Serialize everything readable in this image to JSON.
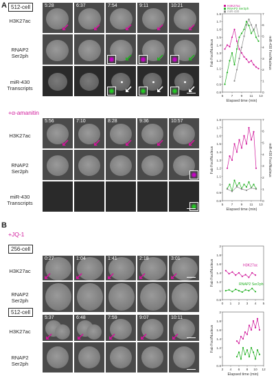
{
  "panelA": {
    "letter": "A",
    "stage": "512-cell",
    "treatment": "+α-amanitin",
    "rows_top": [
      "H3K27ac",
      "RNAP2 Ser2ph",
      "miR-430 Transcripts"
    ],
    "times_top": [
      "5:28",
      "6:37",
      "7:54",
      "9:11",
      "10:21"
    ],
    "times_bottom": [
      "5:56",
      "7:10",
      "8:28",
      "9:36",
      "10:57"
    ]
  },
  "panelB": {
    "letter": "B",
    "treatment": "+JQ-1",
    "stage1": "256-cell",
    "stage2": "512-cell",
    "rows": [
      "H3K27ac",
      "RNAP2 Ser2ph"
    ],
    "times1": [
      "0:27",
      "1:04",
      "1:41",
      "2:18",
      "3:01"
    ],
    "times2": [
      "5:37",
      "6:48",
      "7:59",
      "9:07",
      "10:11"
    ]
  },
  "colors": {
    "magenta": "#d0179a",
    "green": "#22b022",
    "gray": "#888888"
  },
  "chart_data": [
    {
      "type": "line",
      "legend": [
        "H3K27ac",
        "RNAP2 Ser2ph",
        "miR-430"
      ],
      "xlabel": "Elapsed time (min)",
      "ylabel": "Fab Foci/Nucleus",
      "y2label": "miR-430 Foci/Nucleus",
      "xlim": [
        5,
        13
      ],
      "ylim": [
        0.8,
        1.8
      ],
      "y2lim": [
        0,
        7
      ],
      "xticks": [
        "5",
        "7",
        "9",
        "11",
        "13"
      ],
      "yticks": [
        "0.8",
        "0.9",
        "1",
        "1.1",
        "1.2",
        "1.3",
        "1.4",
        "1.5",
        "1.6",
        "1.7",
        "1.8"
      ],
      "y2ticks": [
        "0",
        "1",
        "2",
        "3",
        "4",
        "5",
        "6",
        "7"
      ],
      "series": [
        {
          "name": "H3K27ac",
          "axis": "left",
          "x": [
            5.5,
            6,
            6.5,
            7,
            7.5,
            8,
            8.5,
            9,
            9.5,
            10,
            10.5,
            11,
            11.5,
            12,
            12.5
          ],
          "y": [
            1.35,
            1.4,
            1.38,
            1.5,
            1.6,
            1.45,
            1.35,
            1.3,
            1.25,
            1.22,
            1.18,
            1.2,
            1.15,
            1.12,
            1.1
          ]
        },
        {
          "name": "RNAP2 Ser2ph",
          "axis": "left",
          "x": [
            5.5,
            6,
            6.5,
            7,
            7.5,
            8,
            8.5,
            9,
            9.5,
            10,
            10.5,
            11,
            11.5,
            12,
            12.5
          ],
          "y": [
            0.9,
            1.05,
            1.2,
            1.3,
            1.15,
            1.35,
            1.5,
            1.55,
            1.6,
            1.7,
            1.65,
            1.55,
            1.6,
            1.5,
            1.45
          ]
        },
        {
          "name": "miR-430",
          "axis": "right",
          "x": [
            7.5,
            8,
            8.5,
            9,
            9.5,
            10,
            10.5,
            11,
            11.5,
            12,
            12.5
          ],
          "y": [
            1,
            2,
            3,
            4,
            5,
            6,
            6.5,
            6,
            5.5,
            6,
            5
          ]
        }
      ]
    },
    {
      "type": "line",
      "xlabel": "Elapsed time (min)",
      "ylabel": "Fab Foci/Nucleus",
      "y2label": "miR-430 Foci/Nucleus",
      "xlim": [
        5,
        13
      ],
      "ylim": [
        0.8,
        1.8
      ],
      "y2lim": [
        0,
        7
      ],
      "xticks": [
        "5",
        "7",
        "9",
        "11",
        "13"
      ],
      "yticks": [
        "0.8",
        "0.9",
        "1",
        "1.1",
        "1.2",
        "1.3",
        "1.4",
        "1.5",
        "1.6",
        "1.7",
        "1.8"
      ],
      "y2ticks": [
        "0",
        "1",
        "2",
        "3",
        "4",
        "5",
        "6",
        "7"
      ],
      "series": [
        {
          "name": "H3K27ac",
          "axis": "left",
          "x": [
            6,
            6.5,
            7,
            7.5,
            8,
            8.5,
            9,
            9.5,
            10,
            10.5,
            11,
            11.5,
            12
          ],
          "y": [
            1.2,
            1.35,
            1.3,
            1.5,
            1.4,
            1.55,
            1.45,
            1.6,
            1.5,
            1.7,
            1.55,
            1.65,
            1.2
          ]
        },
        {
          "name": "RNAP2 Ser2ph",
          "axis": "left",
          "x": [
            6,
            6.5,
            7,
            7.5,
            8,
            8.5,
            9,
            9.5,
            10,
            10.5,
            11,
            11.5,
            12
          ],
          "y": [
            0.95,
            1.0,
            0.92,
            1.05,
            0.98,
            1.02,
            0.95,
            1.0,
            0.97,
            1.03,
            0.96,
            1.0,
            0.95
          ]
        },
        {
          "name": "miR-430",
          "axis": "right",
          "x": [
            6,
            7,
            8,
            9,
            10,
            11,
            12
          ],
          "y": [
            1,
            0.8,
            1.2,
            1,
            0.9,
            1.1,
            1
          ]
        }
      ]
    },
    {
      "type": "line",
      "xlabel": "",
      "ylabel": "Fab Foci/Nucleus",
      "xlim": [
        0,
        5
      ],
      "ylim": [
        0.8,
        2.0
      ],
      "xticks": [
        "0",
        "1",
        "2",
        "3",
        "4",
        "5"
      ],
      "yticks": [
        "0.8",
        "1",
        "1.2",
        "1.4",
        "1.6",
        "1.8",
        "2"
      ],
      "annotations": [
        "H3K27ac",
        "RNAP2 Ser2ph"
      ],
      "series": [
        {
          "name": "H3K27ac",
          "x": [
            0.4,
            0.8,
            1.2,
            1.6,
            2,
            2.4,
            2.8,
            3.2,
            3.6,
            4
          ],
          "y": [
            1.45,
            1.38,
            1.42,
            1.35,
            1.4,
            1.32,
            1.36,
            1.3,
            1.4,
            1.35
          ]
        },
        {
          "name": "RNAP2 Ser2ph",
          "x": [
            0.4,
            0.8,
            1.2,
            1.6,
            2,
            2.4,
            2.8,
            3.2,
            3.6,
            4
          ],
          "y": [
            1.0,
            1.02,
            0.98,
            1.03,
            1.0,
            0.97,
            1.02,
            1.0,
            1.05,
            0.98
          ]
        }
      ]
    },
    {
      "type": "line",
      "xlabel": "Elapsed time (min)",
      "ylabel": "Fab Foci/Nucleus",
      "xlim": [
        2,
        12
      ],
      "ylim": [
        0.8,
        2.0
      ],
      "xticks": [
        "2",
        "4",
        "6",
        "8",
        "10",
        "12"
      ],
      "yticks": [
        "0.8",
        "1",
        "1.2",
        "1.4",
        "1.6",
        "1.8",
        "2"
      ],
      "series": [
        {
          "name": "H3K27ac",
          "x": [
            5.5,
            6,
            6.5,
            7,
            7.5,
            8,
            8.5,
            9,
            9.5,
            10,
            10.5,
            11
          ],
          "y": [
            1.35,
            1.3,
            1.45,
            1.4,
            1.55,
            1.5,
            1.7,
            1.6,
            1.8,
            1.65,
            1.85,
            1.6
          ]
        },
        {
          "name": "RNAP2 Ser2ph",
          "x": [
            5.5,
            6,
            6.5,
            7,
            7.5,
            8,
            8.5,
            9,
            9.5,
            10,
            10.5,
            11
          ],
          "y": [
            1.0,
            1.1,
            0.95,
            1.2,
            1.05,
            1.15,
            1.0,
            1.2,
            1.1,
            0.95,
            1.15,
            1.05
          ]
        }
      ]
    }
  ]
}
